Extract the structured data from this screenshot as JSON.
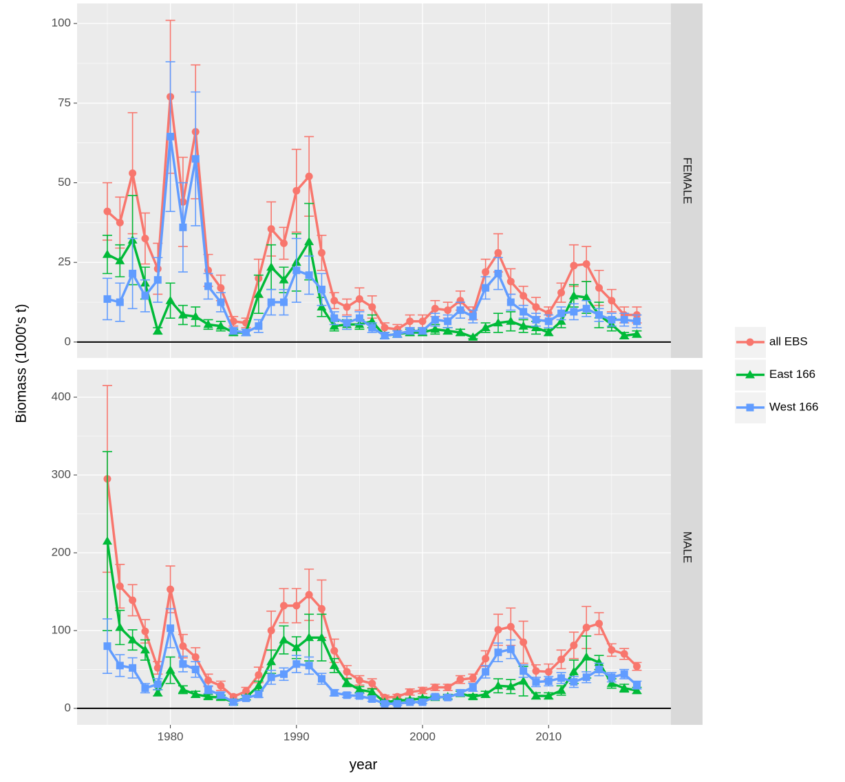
{
  "chart_data": {
    "type": "line",
    "xlabel": "year",
    "ylabel": "Biomass (1000's t)",
    "grid": true,
    "hline": 0,
    "xlim": [
      1972.6,
      2019.7
    ],
    "xticks": [
      1980,
      1990,
      2000,
      2010
    ],
    "x": [
      1975,
      1976,
      1977,
      1978,
      1979,
      1980,
      1981,
      1982,
      1983,
      1984,
      1985,
      1986,
      1987,
      1988,
      1989,
      1990,
      1991,
      1992,
      1993,
      1994,
      1995,
      1996,
      1997,
      1998,
      1999,
      2000,
      2001,
      2002,
      2003,
      2004,
      2005,
      2006,
      2007,
      2008,
      2009,
      2010,
      2011,
      2012,
      2013,
      2014,
      2015,
      2016,
      2017
    ],
    "series": [
      {
        "name": "all EBS",
        "color": "#f8766d",
        "shape": "circle"
      },
      {
        "name": "East 166",
        "color": "#00ba38",
        "shape": "triangle"
      },
      {
        "name": "West 166",
        "color": "#619cff",
        "shape": "square"
      }
    ],
    "facets": [
      {
        "strip": "FEMALE",
        "ylim": [
          -5,
          106.3
        ],
        "yticks": [
          0,
          25,
          50,
          75,
          100
        ],
        "series": [
          {
            "values": [
              41,
              37.5,
              53,
              32.5,
              23,
              77,
              44,
              66,
              22.5,
              17,
              6.5,
              6,
              20,
              35.5,
              31,
              47.5,
              52,
              28,
              13,
              11,
              13.5,
              11,
              4.5,
              4,
              6.5,
              6.5,
              10.5,
              10,
              13,
              9,
              22,
              28,
              19,
              14.5,
              11,
              9,
              15.5,
              24,
              24.5,
              17,
              13,
              8.5,
              8.5
            ],
            "errors": [
              9,
              8,
              19,
              8,
              8,
              24,
              14,
              21,
              5,
              4,
              1.5,
              1.5,
              6,
              8.5,
              5,
              13,
              12.5,
              5.5,
              2.5,
              2.5,
              3.5,
              3.5,
              1.5,
              1.5,
              2,
              2,
              2.5,
              2.5,
              3,
              2,
              4,
              6,
              4,
              3,
              3,
              2,
              3,
              6.5,
              5.5,
              5.5,
              3.5,
              2.5,
              2.5
            ]
          },
          {
            "values": [
              27.5,
              25.5,
              32,
              18.5,
              3.5,
              13,
              8.5,
              8,
              5.5,
              5,
              3,
              3,
              15,
              23.5,
              19.5,
              25,
              31.5,
              11,
              5,
              5.5,
              5.5,
              6.5,
              2,
              2.5,
              3,
              3,
              4,
              3.5,
              3,
              1.5,
              4.5,
              6,
              6.5,
              5,
              4.5,
              3,
              6.5,
              14.5,
              14,
              8.5,
              5.5,
              2,
              2.5
            ],
            "errors": [
              6,
              5,
              14,
              5,
              1,
              5.5,
              3,
              3,
              1.5,
              1.5,
              1,
              1,
              6,
              7,
              4,
              9,
              12,
              3,
              1.5,
              1.5,
              1.5,
              2,
              1,
              1,
              1,
              1,
              1.5,
              1,
              1,
              0.5,
              1.5,
              3,
              3,
              2,
              2,
              1,
              2,
              3.5,
              5,
              4,
              2,
              1,
              1
            ]
          },
          {
            "values": [
              13.5,
              12.5,
              21.5,
              14.5,
              19.5,
              64.5,
              36,
              57.5,
              17.5,
              12.5,
              3.5,
              3,
              5,
              12.5,
              12.5,
              22.5,
              21,
              16.5,
              7.5,
              6,
              7.5,
              4.5,
              2,
              2.5,
              3.5,
              3.5,
              7,
              6.5,
              10,
              8,
              17,
              21.5,
              12.5,
              9.5,
              7,
              6.5,
              9,
              9.5,
              10.5,
              8.5,
              7,
              7,
              6.5
            ],
            "errors": [
              6.5,
              6,
              11,
              5,
              7,
              23.5,
              14,
              21,
              4,
              3,
              1,
              1,
              2,
              4,
              4,
              10,
              6,
              5,
              2,
              2,
              2,
              1.5,
              1,
              1,
              1,
              1,
              2,
              2,
              2.5,
              2,
              3.5,
              5,
              2.5,
              2,
              2,
              2,
              2,
              2.5,
              2.5,
              2,
              2,
              2,
              2
            ]
          }
        ]
      },
      {
        "strip": "MALE",
        "ylim": [
          -21.2,
          435.4
        ],
        "yticks": [
          0,
          100,
          200,
          300,
          400
        ],
        "series": [
          {
            "values": [
              295,
              157,
              139,
              99,
              52,
              153,
              80,
              66,
              36,
              29,
              15,
              22,
              43,
              100,
              132,
              132,
              146,
              128,
              74,
              47,
              36,
              32,
              14,
              15,
              21,
              23,
              27,
              27,
              37,
              39,
              64,
              101,
              105,
              85,
              48,
              47,
              63,
              81,
              104,
              109,
              75,
              70,
              54
            ],
            "errors": [
              120,
              28,
              20,
              15,
              8,
              30,
              15,
              12,
              8,
              6,
              3,
              5,
              10,
              25,
              22,
              22,
              33,
              37,
              15,
              8,
              6,
              6,
              3,
              3,
              4,
              4,
              4,
              4,
              5,
              5,
              10,
              20,
              24,
              27,
              8,
              10,
              12,
              17,
              27,
              14,
              8,
              7,
              5
            ]
          },
          {
            "values": [
              215,
              104,
              88,
              75,
              20,
              49,
              24,
              18,
              15,
              14,
              8,
              14,
              29,
              60,
              88,
              78,
              91,
              91,
              55,
              33,
              24,
              21,
              8,
              10,
              11,
              13,
              14,
              15,
              19,
              15,
              18,
              29,
              28,
              35,
              16,
              16,
              23,
              47,
              66,
              59,
              32,
              26,
              23
            ],
            "errors": [
              115,
              22,
              13,
              13,
              4,
              17,
              5,
              4,
              3,
              3,
              2,
              3,
              6,
              15,
              18,
              14,
              30,
              30,
              9,
              5,
              4,
              4,
              2,
              2,
              2,
              2,
              2,
              3,
              3,
              3,
              4,
              9,
              9,
              19,
              4,
              4,
              6,
              15,
              27,
              9,
              6,
              5,
              4
            ]
          },
          {
            "values": [
              80,
              55,
              52,
              26,
              31,
              103,
              57,
              50,
              24,
              17,
              8,
              13,
              18,
              40,
              44,
              57,
              55,
              38,
              20,
              17,
              16,
              12,
              6,
              6,
              8,
              8,
              15,
              14,
              20,
              27,
              47,
              72,
              76,
              48,
              34,
              35,
              39,
              34,
              40,
              50,
              40,
              44,
              30
            ],
            "errors": [
              35,
              14,
              13,
              6,
              7,
              25,
              10,
              10,
              5,
              4,
              2,
              3,
              4,
              9,
              8,
              11,
              11,
              7,
              4,
              3,
              3,
              3,
              2,
              2,
              2,
              2,
              3,
              3,
              4,
              5,
              8,
              12,
              12,
              8,
              6,
              6,
              7,
              7,
              7,
              8,
              6,
              6,
              5
            ]
          }
        ]
      }
    ]
  }
}
